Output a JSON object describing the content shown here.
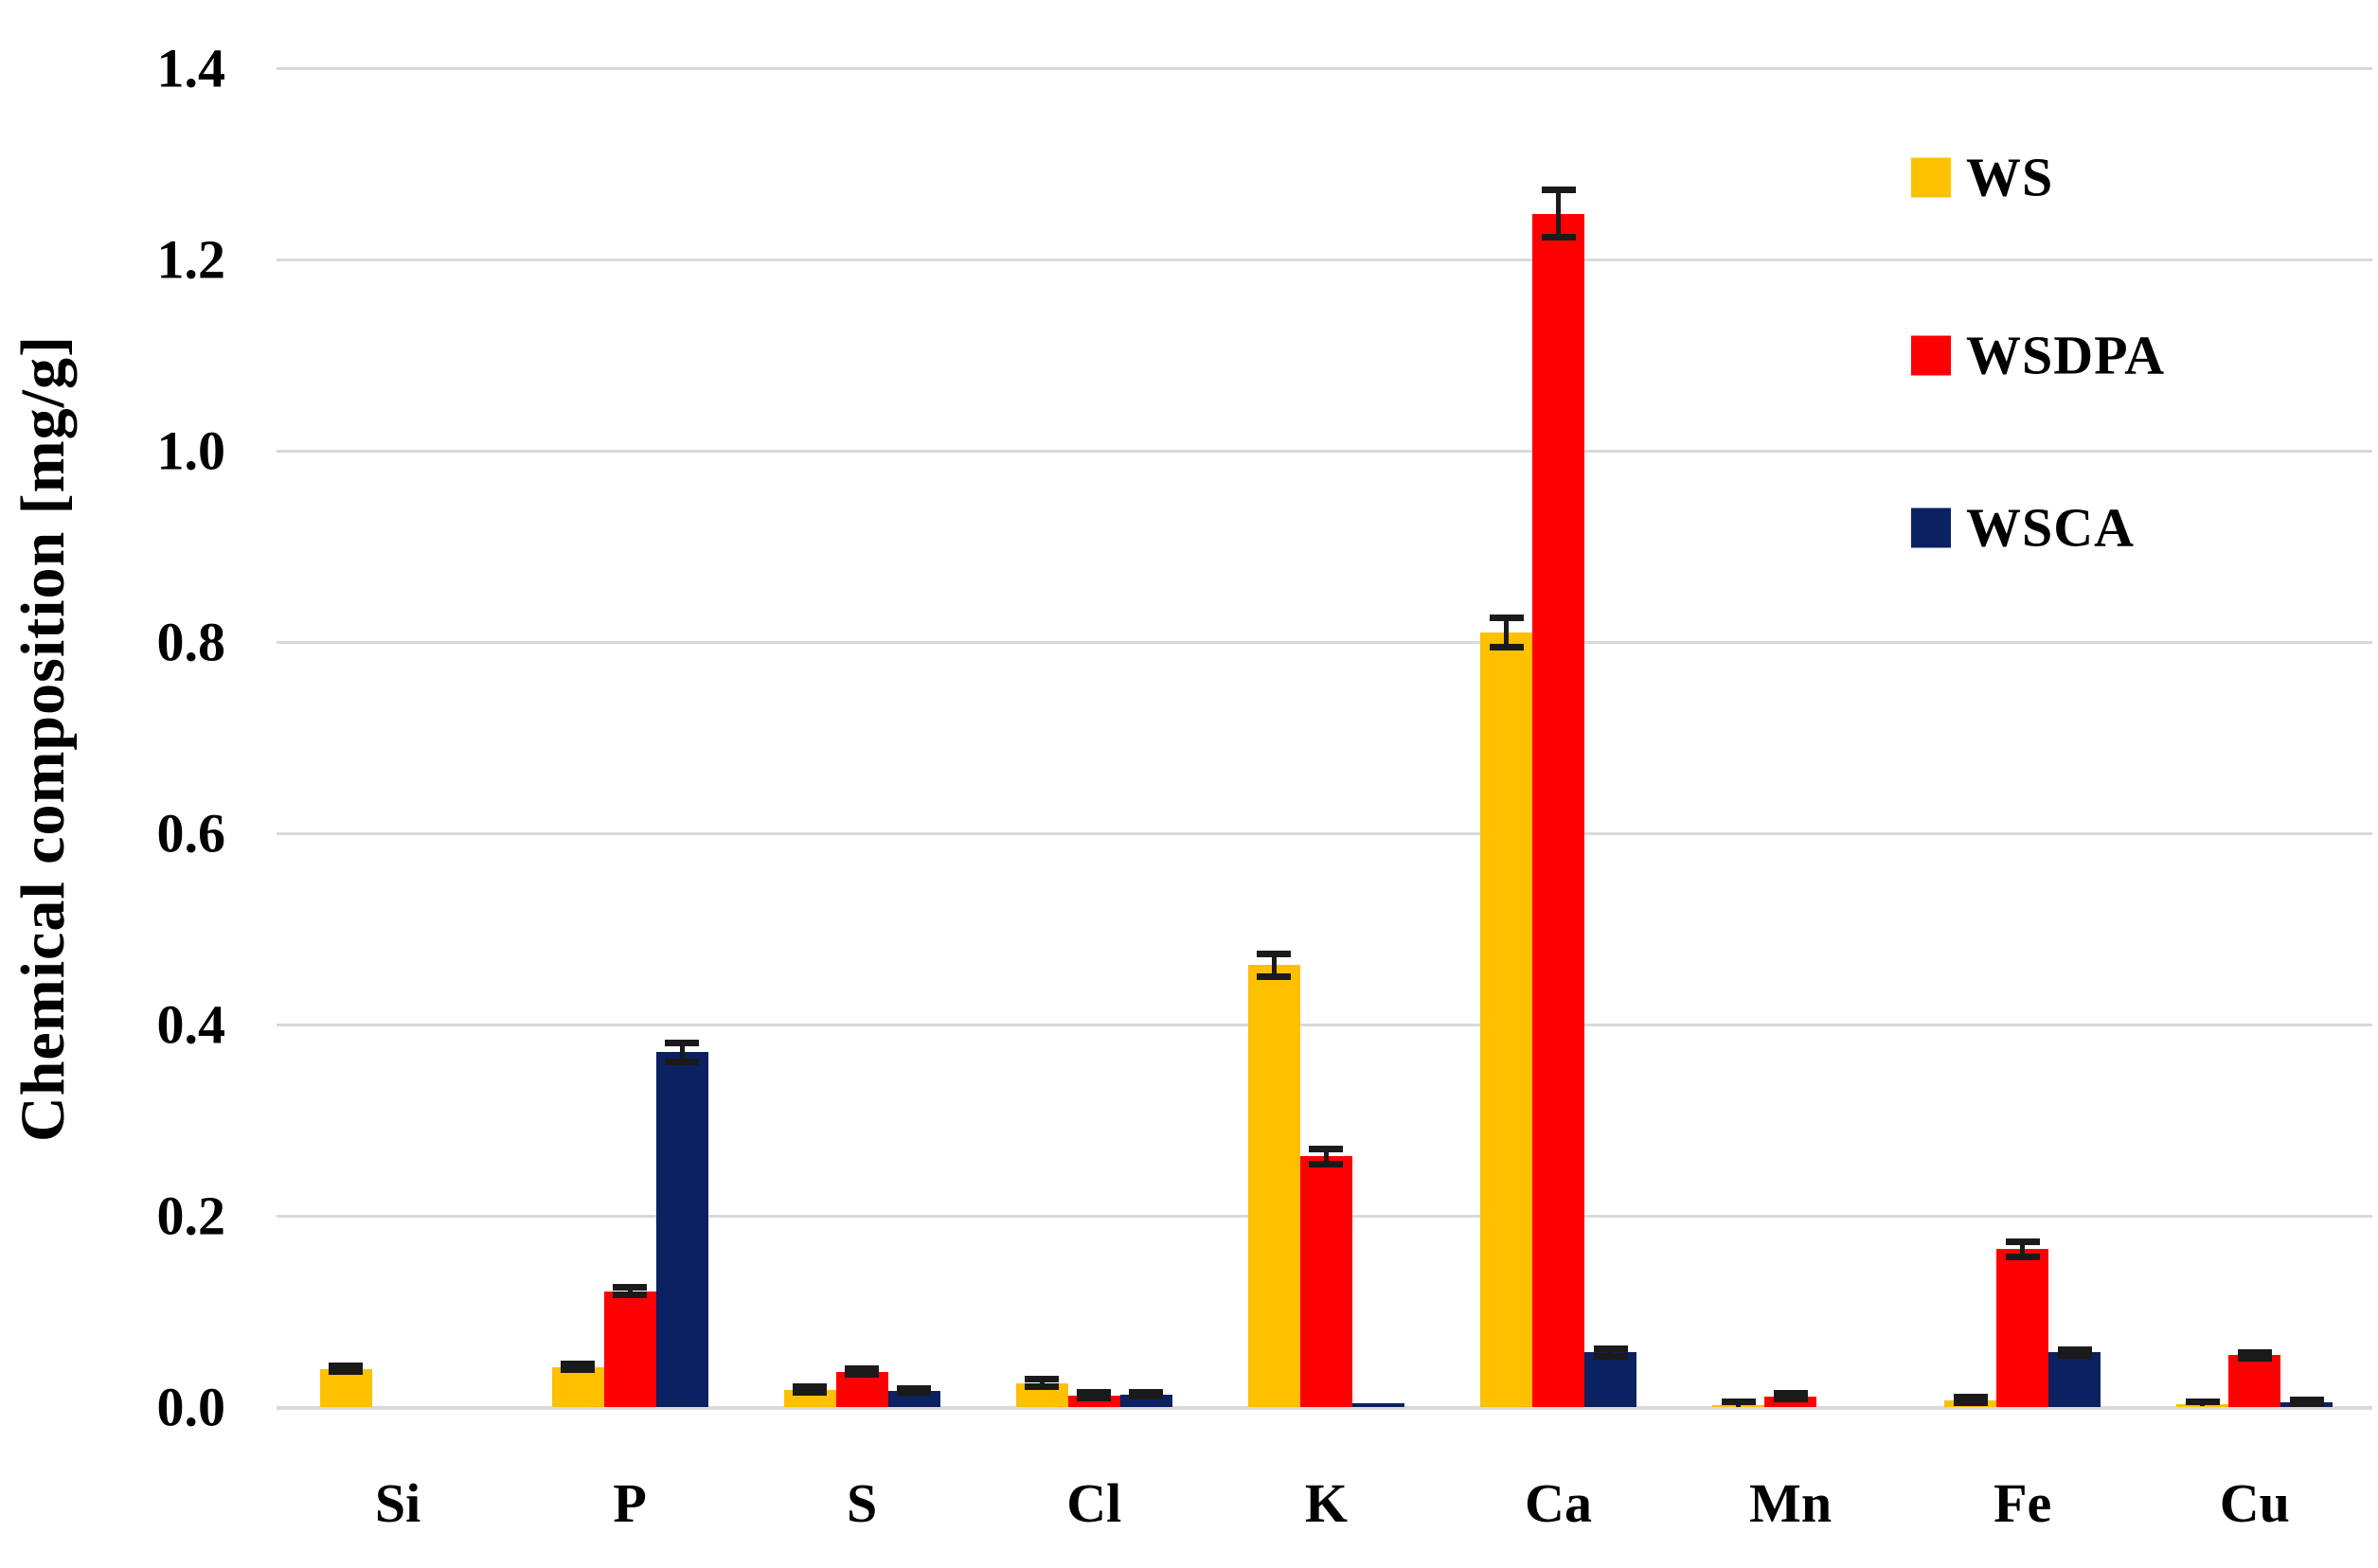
{
  "figure": {
    "background": "#ffffff"
  },
  "colors": {
    "gridline": "#d9d9d9",
    "error_bar": "#1a1a1a",
    "text": "#000000"
  },
  "chart_data": {
    "type": "bar",
    "title": "",
    "xlabel": "",
    "ylabel": "Chemical composition [mg/g]",
    "ylim": [
      0.0,
      1.4
    ],
    "ytick_step": 0.2,
    "ytick_labels": [
      "0.0",
      "0.2",
      "0.4",
      "0.6",
      "0.8",
      "1.0",
      "1.2",
      "1.4"
    ],
    "grid": true,
    "legend_position": "top-right",
    "categories": [
      "Si",
      "P",
      "S",
      "Cl",
      "K",
      "Ca",
      "Mn",
      "Fe",
      "Cu"
    ],
    "series": [
      {
        "name": "WS",
        "color": "#FFC000",
        "values": [
          0.04,
          0.042,
          0.018,
          0.025,
          0.462,
          0.81,
          0.002,
          0.007,
          0.003
        ],
        "errors": [
          0.003,
          0.003,
          0.003,
          0.004,
          0.012,
          0.015,
          0.003,
          0.003,
          0.002
        ]
      },
      {
        "name": "WSDPA",
        "color": "#FF0000",
        "values": [
          0.0,
          0.121,
          0.037,
          0.012,
          0.262,
          1.248,
          0.011,
          0.165,
          0.054
        ],
        "errors": [
          0.0,
          0.004,
          0.003,
          0.003,
          0.008,
          0.025,
          0.003,
          0.008,
          0.003
        ]
      },
      {
        "name": "WSCA",
        "color": "#0B2161",
        "values": [
          0.0,
          0.371,
          0.017,
          0.013,
          0.004,
          0.057,
          0.0,
          0.057,
          0.005
        ],
        "errors": [
          0.0,
          0.01,
          0.002,
          0.002,
          0.0,
          0.004,
          0.0,
          0.003,
          0.002
        ]
      }
    ]
  }
}
